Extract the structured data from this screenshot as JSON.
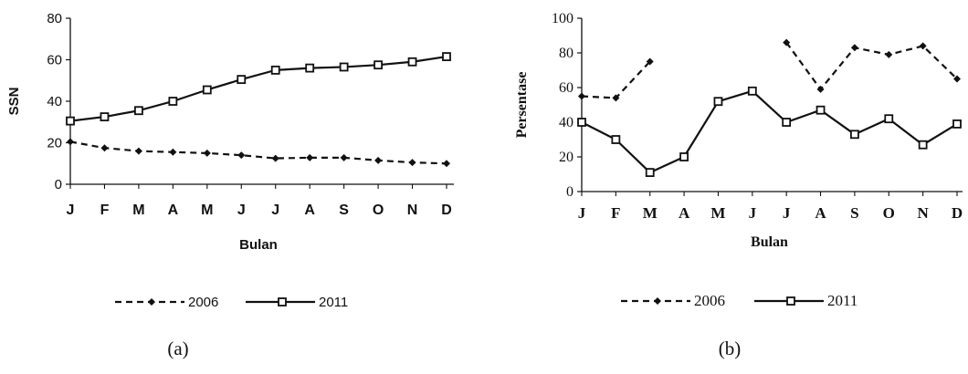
{
  "chart_data": [
    {
      "type": "line",
      "caption": "(a)",
      "title": "",
      "xlabel": "Bulan",
      "ylabel": "SSN",
      "categories": [
        "J",
        "F",
        "M",
        "A",
        "M",
        "J",
        "J",
        "A",
        "S",
        "O",
        "N",
        "D"
      ],
      "ylim": [
        0,
        80
      ],
      "yticks": [
        0,
        20,
        40,
        60,
        80
      ],
      "grid": false,
      "legend_position": "bottom",
      "series": [
        {
          "name": "2006",
          "style": "dashed",
          "marker": "diamond",
          "color": "#111111",
          "values": [
            20.5,
            17.5,
            16,
            15.5,
            15,
            14,
            12.5,
            12.8,
            12.8,
            11.5,
            10.5,
            10
          ]
        },
        {
          "name": "2011",
          "style": "solid",
          "marker": "square",
          "color": "#111111",
          "values": [
            30.5,
            32.5,
            35.5,
            40,
            45.5,
            50.5,
            55,
            56,
            56.5,
            57.5,
            59,
            61.5
          ]
        }
      ]
    },
    {
      "type": "line",
      "caption": "(b)",
      "title": "",
      "xlabel": "Bulan",
      "ylabel": "Persentase",
      "categories": [
        "J",
        "F",
        "M",
        "A",
        "M",
        "J",
        "J",
        "A",
        "S",
        "O",
        "N",
        "D"
      ],
      "ylim": [
        0,
        100
      ],
      "yticks": [
        0,
        20,
        40,
        60,
        80,
        100
      ],
      "grid": false,
      "legend_position": "bottom",
      "series": [
        {
          "name": "2006",
          "style": "dashed",
          "marker": "diamond",
          "color": "#111111",
          "values": [
            55,
            54,
            75,
            null,
            null,
            null,
            86,
            59,
            83,
            79,
            84,
            65
          ]
        },
        {
          "name": "2011",
          "style": "solid",
          "marker": "square",
          "color": "#111111",
          "values": [
            40,
            30,
            11,
            20,
            52,
            58,
            40,
            47,
            33,
            42,
            27,
            39
          ]
        }
      ]
    }
  ]
}
